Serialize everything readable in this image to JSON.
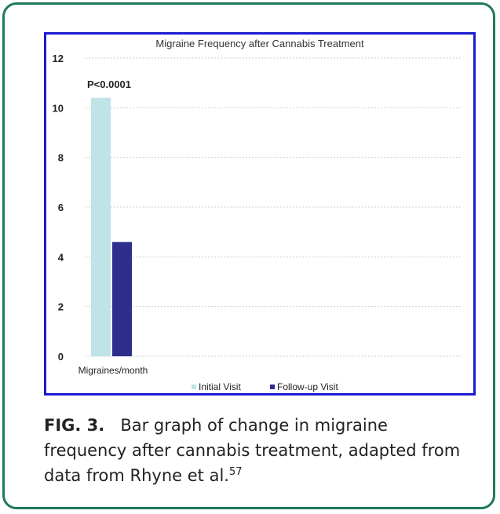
{
  "chart_data": {
    "type": "bar",
    "title": "Migraine Frequency after Cannabis Treatment",
    "categories": [
      "Migraines/month"
    ],
    "series": [
      {
        "name": "Initial Visit",
        "values": [
          10.4
        ],
        "color": "#bfe3e6"
      },
      {
        "name": "Follow-up Visit",
        "values": [
          4.6
        ],
        "color": "#2e2e8f"
      }
    ],
    "ylim": [
      0,
      12
    ],
    "yticks": [
      0,
      2,
      4,
      6,
      8,
      10,
      12
    ],
    "grid": true,
    "legend": "bottom",
    "annotation": "P<0.0001"
  },
  "caption": {
    "label": "FIG. 3.",
    "text": "Bar graph of change in migraine frequency after cannabis treatment, adapted from data from Rhyne et al.",
    "reference": "57"
  },
  "colors": {
    "frame": "#1e7a5c",
    "chart_border": "#1b1bd0",
    "gridline": "#cfcfcf"
  }
}
